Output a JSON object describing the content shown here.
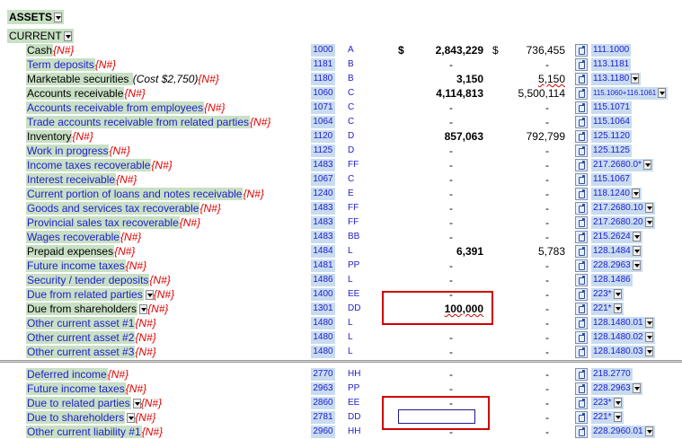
{
  "headers": {
    "assets": "ASSETS",
    "current": "CURRENT"
  },
  "null_marker": "{N#}",
  "asset_rows": [
    {
      "label": "Cash",
      "style": "black",
      "code": "1000",
      "letter": "A",
      "current": "2,843,229",
      "prev": "736,455",
      "ref": "111.1000",
      "dollar": true
    },
    {
      "label": "Term deposits",
      "style": "blue",
      "code": "1181",
      "letter": "B",
      "current": "-",
      "prev": "-",
      "ref": "113.1181"
    },
    {
      "label": "Marketable securities ",
      "label_italic": "(Cost $2,750)",
      "style": "black",
      "code": "1180",
      "letter": "B",
      "current": "3,150",
      "prev": "5,150",
      "ref": "113.1180",
      "dropdown": true
    },
    {
      "label": "Accounts receivable",
      "style": "black",
      "code": "1060",
      "letter": "C",
      "current": "4,114,813",
      "prev": "5,500,114",
      "ref": "115.1060+116.1061",
      "dropdown": true,
      "ref_small": true
    },
    {
      "label": "Accounts receivable from employees",
      "style": "blue",
      "code": "1071",
      "letter": "C",
      "current": "-",
      "prev": "-",
      "ref": "115.1071"
    },
    {
      "label": "Trade accounts receivable from related parties",
      "style": "blue",
      "code": "1064",
      "letter": "C",
      "current": "-",
      "prev": "-",
      "ref": "115.1064"
    },
    {
      "label": "Inventory",
      "style": "black",
      "code": "1120",
      "letter": "D",
      "current": "857,063",
      "prev": "792,799",
      "ref": "125.1120"
    },
    {
      "label": "Work in progress",
      "style": "blue",
      "code": "1125",
      "letter": "D",
      "current": "-",
      "prev": "-",
      "ref": "125.1125"
    },
    {
      "label": "Income taxes recoverable",
      "style": "blue",
      "code": "1483",
      "letter": "FF",
      "current": "-",
      "prev": "-",
      "ref": "217.2680.0*",
      "dropdown": true
    },
    {
      "label": "Interest receivable",
      "style": "blue",
      "code": "1067",
      "letter": "C",
      "current": "-",
      "prev": "-",
      "ref": "115.1067"
    },
    {
      "label": "Current portion of loans and notes receivable",
      "style": "blue",
      "code": "1240",
      "letter": "E",
      "current": "-",
      "prev": "-",
      "ref": "118.1240",
      "dropdown": true
    },
    {
      "label": "Goods and services tax recoverable",
      "style": "blue",
      "code": "1483",
      "letter": "FF",
      "current": "-",
      "prev": "-",
      "ref": "217.2680.10",
      "dropdown": true
    },
    {
      "label": "Provincial sales tax recoverable",
      "style": "blue",
      "code": "1483",
      "letter": "FF",
      "current": "-",
      "prev": "-",
      "ref": "217.2680.20",
      "dropdown": true
    },
    {
      "label": "Wages recoverable",
      "style": "blue",
      "code": "1483",
      "letter": "BB",
      "current": "-",
      "prev": "-",
      "ref": "215.2624",
      "dropdown": true
    },
    {
      "label": "Prepaid expenses",
      "style": "black",
      "code": "1484",
      "letter": "L",
      "current": "6,391",
      "prev": "5,783",
      "ref": "128.1484",
      "dropdown": true
    },
    {
      "label": "Future income taxes",
      "style": "blue",
      "code": "1481",
      "letter": "PP",
      "current": "-",
      "prev": "-",
      "ref": "228.2963",
      "dropdown": true
    },
    {
      "label": "Security / tender deposits",
      "style": "blue",
      "code": "1486",
      "letter": "L",
      "current": "-",
      "prev": "-",
      "ref": "128.1486"
    },
    {
      "label": "Due from related parties",
      "style": "blue",
      "code": "1400",
      "letter": "EE",
      "current": "-",
      "prev": "-",
      "ref": "223*",
      "dropdown": true,
      "label_dd": true
    },
    {
      "label": "Due from shareholders",
      "style": "black",
      "code": "1301",
      "letter": "DD",
      "current": "100,000",
      "prev": "-",
      "ref": "221*",
      "dropdown": true,
      "label_dd": true
    },
    {
      "label": "Other current asset #1",
      "style": "blue",
      "code": "1480",
      "letter": "L",
      "current": "-",
      "prev": "-",
      "ref": "128.1480.01",
      "dropdown": true
    },
    {
      "label": "Other current asset #2",
      "style": "blue",
      "code": "1480",
      "letter": "L",
      "current": "-",
      "prev": "-",
      "ref": "128.1480.02",
      "dropdown": true
    },
    {
      "label": "Other current asset #3",
      "style": "blue",
      "code": "1480",
      "letter": "L",
      "current": "-",
      "prev": "-",
      "ref": "128.1480.03",
      "dropdown": true
    }
  ],
  "liability_rows": [
    {
      "label": "Deferred income",
      "style": "blue",
      "code": "2770",
      "letter": "HH",
      "current": "-",
      "prev": "-",
      "ref": "218.2770"
    },
    {
      "label": "Future income taxes",
      "style": "blue",
      "code": "2963",
      "letter": "PP",
      "current": "-",
      "prev": "-",
      "ref": "228.2963",
      "dropdown": true
    },
    {
      "label": "Due to related parties",
      "style": "blue",
      "code": "2860",
      "letter": "EE",
      "current": "-",
      "prev": "-",
      "ref": "223*",
      "dropdown": true,
      "label_dd": true
    },
    {
      "label": "Due to shareholders",
      "style": "blue",
      "code": "2781",
      "letter": "DD",
      "current": "-",
      "prev": "-",
      "ref": "221*",
      "dropdown": true,
      "label_dd": true
    },
    {
      "label": "Other current liability #1",
      "style": "blue",
      "code": "2960",
      "letter": "HH",
      "current": "-",
      "prev": "-",
      "ref": "228.2960.01",
      "dropdown": true
    }
  ],
  "currency_symbol": "$"
}
